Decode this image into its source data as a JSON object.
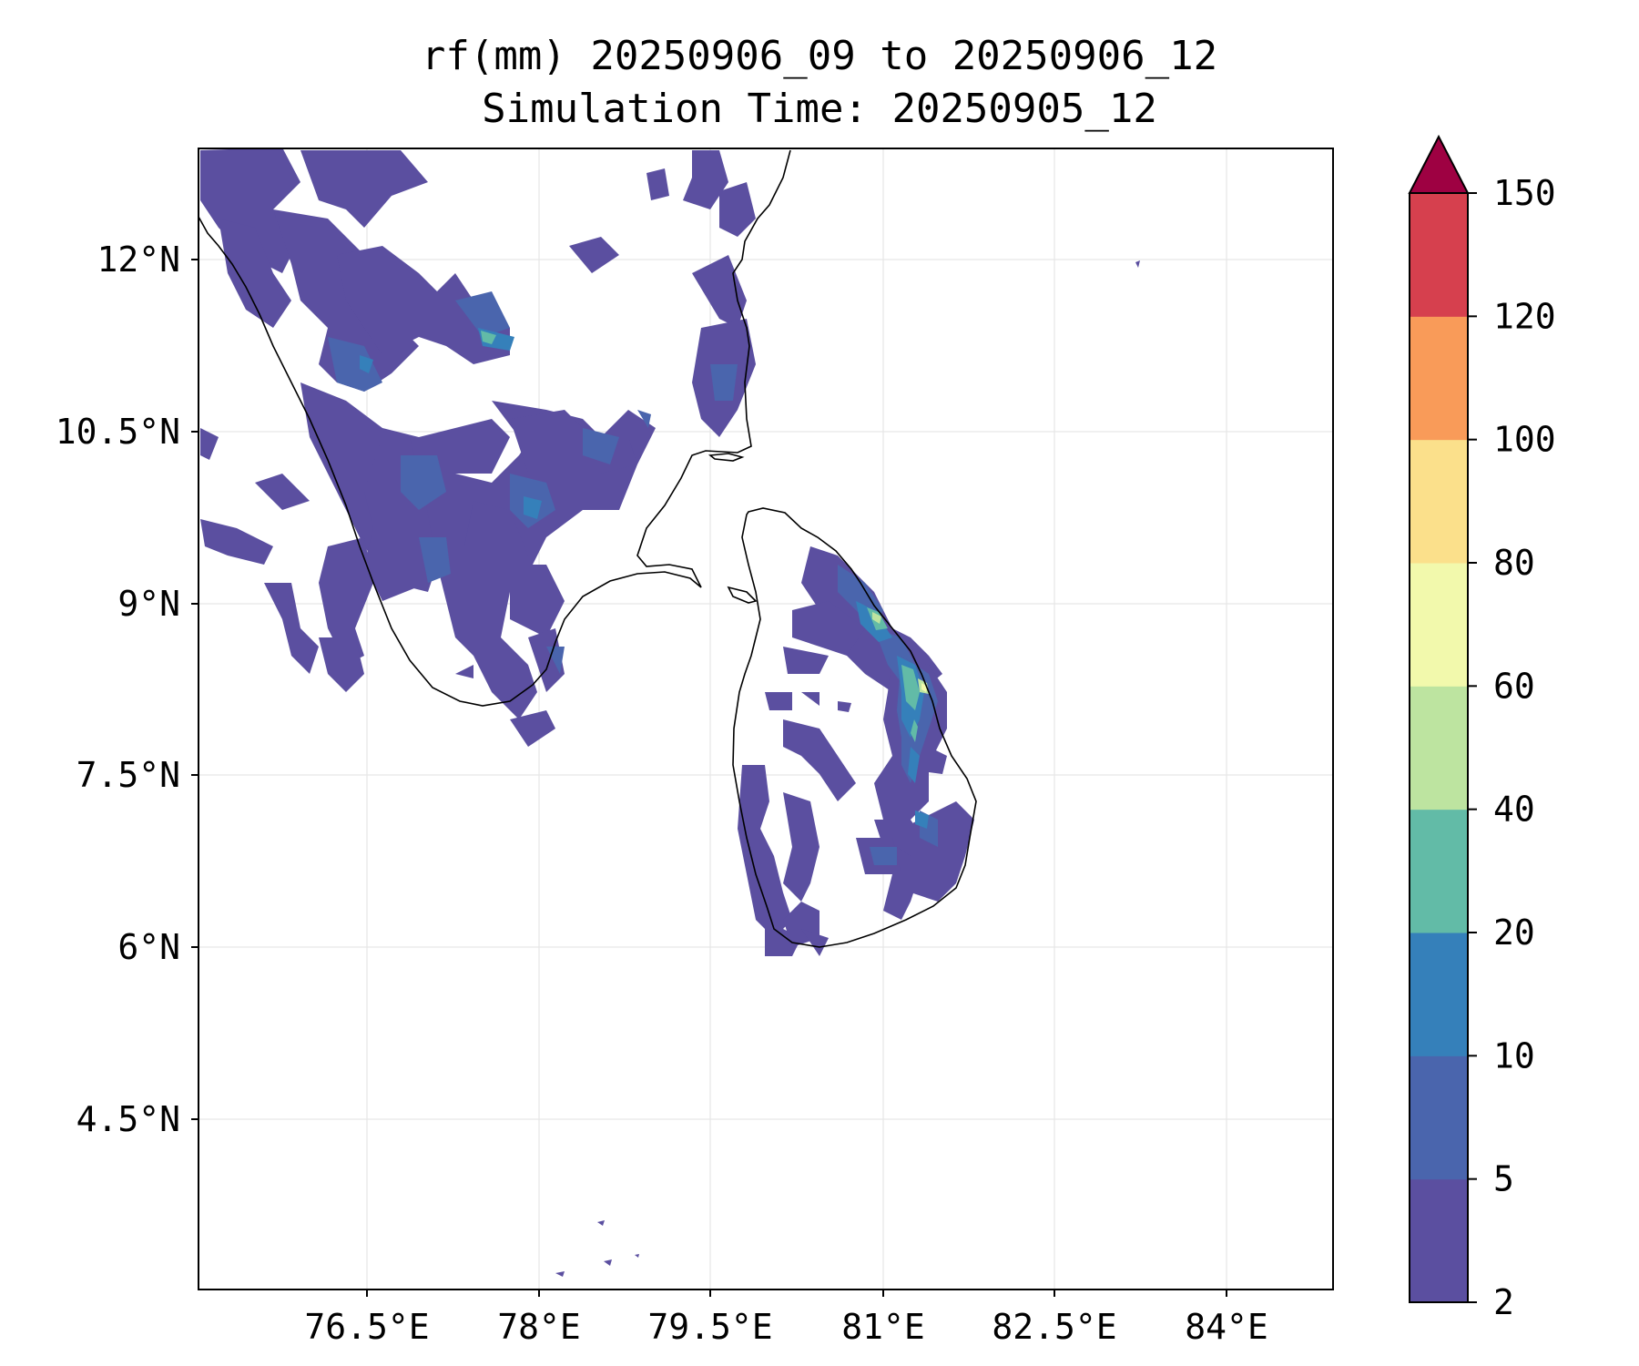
{
  "title_line1": "rf(mm) 20250906_09 to 20250906_12",
  "title_line2": "Simulation Time: 20250905_12",
  "map": {
    "lon_ticks": [
      "76.5°E",
      "78°E",
      "79.5°E",
      "81°E",
      "82.5°E",
      "84°E"
    ],
    "lat_ticks": [
      "12°N",
      "10.5°N",
      "9°N",
      "7.5°N",
      "6°N",
      "4.5°N"
    ],
    "lon_range": [
      75.05,
      84.95
    ],
    "lat_range": [
      3.0,
      12.95
    ],
    "grid": true,
    "coastline_color": "#000000",
    "regions_shown": [
      "Southern India",
      "Sri Lanka"
    ]
  },
  "colorbar": {
    "levels": [
      "2",
      "5",
      "10",
      "20",
      "40",
      "60",
      "80",
      "100",
      "120",
      "150"
    ],
    "colors": [
      "#5b4fa0",
      "#4a65ad",
      "#3580ba",
      "#62bba7",
      "#bde4a0",
      "#f2f9ac",
      "#fbe08b",
      "#f99b59",
      "#d6404e",
      "#9e0142"
    ],
    "extend": "max",
    "extend_color": "#9e0142"
  },
  "rainfall_summary": "Light rainfall 2–10 mm over Kerala/Tamil Nadu; 20–60 mm band along north-east Sri Lanka coast"
}
